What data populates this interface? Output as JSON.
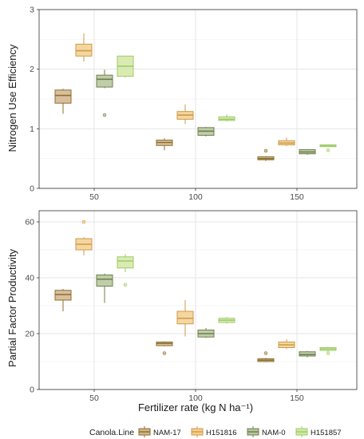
{
  "chart_data": [
    {
      "type": "box",
      "ylabel": "Nitrogen Use Efficiency",
      "xlabel": "",
      "ylim": [
        0,
        3
      ],
      "yticks": [
        "0",
        "1",
        "2",
        "3"
      ],
      "categories": [
        "50",
        "100",
        "150"
      ],
      "series": [
        {
          "name": "NAM-17",
          "boxes": [
            {
              "min": 1.25,
              "q1": 1.43,
              "median": 1.56,
              "q3": 1.65,
              "max": 1.67,
              "outliers": []
            },
            {
              "min": 0.64,
              "q1": 0.72,
              "median": 0.77,
              "q3": 0.81,
              "max": 0.84,
              "outliers": []
            },
            {
              "min": 0.46,
              "q1": 0.48,
              "median": 0.5,
              "q3": 0.53,
              "max": 0.54,
              "outliers": [
                0.63
              ]
            }
          ]
        },
        {
          "name": "H151816",
          "boxes": [
            {
              "min": 2.13,
              "q1": 2.22,
              "median": 2.31,
              "q3": 2.42,
              "max": 2.6,
              "outliers": []
            },
            {
              "min": 1.08,
              "q1": 1.16,
              "median": 1.23,
              "q3": 1.29,
              "max": 1.41,
              "outliers": []
            },
            {
              "min": 0.71,
              "q1": 0.73,
              "median": 0.76,
              "q3": 0.8,
              "max": 0.85,
              "outliers": []
            }
          ]
        },
        {
          "name": "NAM-0",
          "boxes": [
            {
              "min": 1.68,
              "q1": 1.7,
              "median": 1.83,
              "q3": 1.9,
              "max": 1.99,
              "outliers": [
                1.23
              ]
            },
            {
              "min": 0.87,
              "q1": 0.89,
              "median": 0.96,
              "q3": 1.02,
              "max": 1.03,
              "outliers": []
            },
            {
              "min": 0.56,
              "q1": 0.58,
              "median": 0.61,
              "q3": 0.65,
              "max": 0.66,
              "outliers": []
            }
          ]
        },
        {
          "name": "H151857",
          "boxes": [
            {
              "min": 1.86,
              "q1": 1.88,
              "median": 2.05,
              "q3": 2.22,
              "max": 2.22,
              "outliers": []
            },
            {
              "min": 1.12,
              "q1": 1.14,
              "median": 1.16,
              "q3": 1.2,
              "max": 1.24,
              "outliers": []
            },
            {
              "min": 0.69,
              "q1": 0.7,
              "median": 0.71,
              "q3": 0.73,
              "max": 0.74,
              "outliers": [
                0.64
              ]
            }
          ]
        }
      ]
    },
    {
      "type": "box",
      "ylabel": "Partial Factor Productivity",
      "xlabel": "Fertilizer rate (kg N ha⁻¹)",
      "ylim": [
        0,
        64
      ],
      "yticks": [
        "0",
        "20",
        "40",
        "60"
      ],
      "categories": [
        "50",
        "100",
        "150"
      ],
      "series": [
        {
          "name": "NAM-17",
          "boxes": [
            {
              "min": 28,
              "q1": 32,
              "median": 34,
              "q3": 35.5,
              "max": 36,
              "outliers": []
            },
            {
              "min": 15.5,
              "q1": 15.7,
              "median": 16.5,
              "q3": 17,
              "max": 17.2,
              "outliers": [
                13
              ]
            },
            {
              "min": 9.8,
              "q1": 10,
              "median": 10.5,
              "q3": 11,
              "max": 11.3,
              "outliers": [
                13
              ]
            }
          ]
        },
        {
          "name": "H151816",
          "boxes": [
            {
              "min": 48,
              "q1": 50,
              "median": 52,
              "q3": 54,
              "max": 54.5,
              "outliers": [
                60
              ]
            },
            {
              "min": 19,
              "q1": 23.5,
              "median": 25.5,
              "q3": 28,
              "max": 32,
              "outliers": []
            },
            {
              "min": 14.5,
              "q1": 15,
              "median": 16,
              "q3": 17,
              "max": 18,
              "outliers": []
            }
          ]
        },
        {
          "name": "NAM-0",
          "boxes": [
            {
              "min": 31,
              "q1": 37,
              "median": 39.5,
              "q3": 41,
              "max": 41.5,
              "outliers": []
            },
            {
              "min": 18.5,
              "q1": 18.8,
              "median": 20,
              "q3": 21.3,
              "max": 22,
              "outliers": []
            },
            {
              "min": 11.5,
              "q1": 12,
              "median": 12.5,
              "q3": 13.5,
              "max": 13.8,
              "outliers": []
            }
          ]
        },
        {
          "name": "H151857",
          "boxes": [
            {
              "min": 42,
              "q1": 43.5,
              "median": 46,
              "q3": 47.5,
              "max": 48.5,
              "outliers": [
                37.5
              ]
            },
            {
              "min": 23.5,
              "q1": 24,
              "median": 24.8,
              "q3": 25.5,
              "max": 26,
              "outliers": []
            },
            {
              "min": 13.5,
              "q1": 14,
              "median": 14.5,
              "q3": 15,
              "max": 15.3,
              "outliers": [
                13
              ]
            }
          ]
        }
      ]
    }
  ],
  "legend": {
    "title": "Canola.Line",
    "placement": "bottom",
    "items": [
      "NAM-17",
      "H151816",
      "NAM-0",
      "H151857"
    ]
  },
  "colors": {
    "NAM-17": {
      "fill": "#d2b48c",
      "stroke": "#8b6f2f"
    },
    "H151816": {
      "fill": "#f2cf8f",
      "stroke": "#cf9a48"
    },
    "NAM-0": {
      "fill": "#b5c49a",
      "stroke": "#6f7f4f"
    },
    "H151857": {
      "fill": "#d2e8a6",
      "stroke": "#9fcb6a"
    }
  }
}
